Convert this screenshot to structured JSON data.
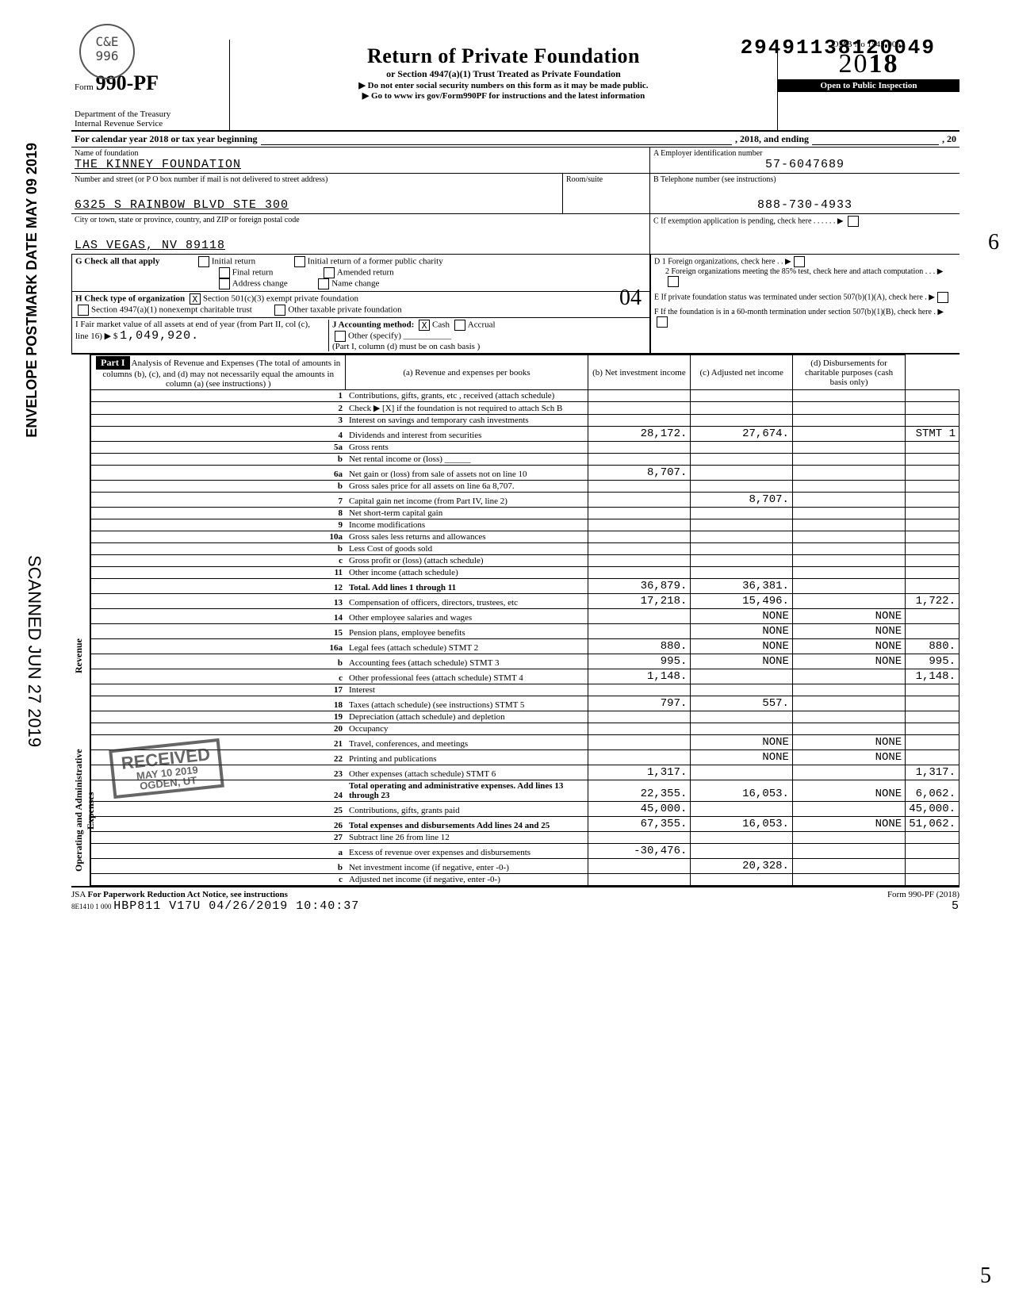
{
  "stamp_top": "C&E\n996",
  "dln": "29491138120049",
  "form": {
    "prefix": "Form",
    "number": "990-PF",
    "dept": "Department of the Treasury\nInternal Revenue Service",
    "title": "Return of Private Foundation",
    "subtitle": "or Section 4947(a)(1) Trust Treated as Private Foundation",
    "warn": "▶ Do not enter social security numbers on this form as it may be made public.",
    "goto": "▶ Go to www irs gov/Form990PF for instructions and the latest information",
    "omb": "OMB No 1545-0052",
    "year": "2018",
    "inspect": "Open to Public Inspection"
  },
  "cal": {
    "line": "For calendar year 2018 or tax year beginning",
    "mid": ", 2018, and ending",
    "end": ", 20"
  },
  "id": {
    "name_label": "Name of foundation",
    "name": "THE KINNEY FOUNDATION",
    "addr_label": "Number and street (or P O box number if mail is not delivered to street address)",
    "addr": "6325 S RAINBOW BLVD STE 300",
    "room_label": "Room/suite",
    "city_label": "City or town, state or province, country, and ZIP or foreign postal code",
    "city": "LAS VEGAS, NV 89118",
    "ein_label": "A  Employer identification number",
    "ein": "57-6047689",
    "phone_label": "B  Telephone number (see instructions)",
    "phone": "888-730-4933",
    "c_label": "C  If exemption application is pending, check here",
    "d1": "D 1 Foreign organizations, check here",
    "d2": "2 Foreign organizations meeting the 85% test, check here and attach computation",
    "e": "E  If private foundation status was terminated under section 507(b)(1)(A), check here",
    "f": "F  If the foundation is in a 60-month termination under section 507(b)(1)(B), check here"
  },
  "g": {
    "label": "G  Check all that apply",
    "opts": [
      "Initial return",
      "Final return",
      "Address change",
      "Initial return of a former public charity",
      "Amended return",
      "Name change"
    ]
  },
  "h": {
    "label": "H  Check type of organization",
    "o1": "Section 501(c)(3) exempt private foundation",
    "o2": "Section 4947(a)(1) nonexempt charitable trust",
    "o3": "Other taxable private foundation",
    "hand": "04"
  },
  "i": {
    "label": "I  Fair market value of all assets at end of year (from Part II, col (c), line 16) ▶ $",
    "val": "1,049,920."
  },
  "j": {
    "label": "J Accounting method:",
    "cash": "Cash",
    "accrual": "Accrual",
    "other": "Other (specify)",
    "note": "(Part I, column (d) must be on cash basis )"
  },
  "part1": {
    "title": "Part I",
    "heading": "Analysis of Revenue and Expenses (The total of amounts in columns (b), (c), and (d) may not necessarily equal the amounts in column (a) (see instructions) )",
    "cols": [
      "(a) Revenue and expenses per books",
      "(b) Net investment income",
      "(c) Adjusted net income",
      "(d) Disbursements for charitable purposes (cash basis only)"
    ]
  },
  "rev_label": "Revenue",
  "exp_label": "Operating and Administrative Expenses",
  "lines": [
    {
      "n": "1",
      "d": "Contributions, gifts, grants, etc , received (attach schedule)",
      "a": "",
      "b": "",
      "c": "",
      "e": ""
    },
    {
      "n": "2",
      "d": "Check ▶ [X] if the foundation is not required to attach Sch B",
      "a": "",
      "b": "",
      "c": "",
      "e": ""
    },
    {
      "n": "3",
      "d": "Interest on savings and temporary cash investments",
      "a": "",
      "b": "",
      "c": "",
      "e": ""
    },
    {
      "n": "4",
      "d": "Dividends and interest from securities",
      "a": "28,172.",
      "b": "27,674.",
      "c": "",
      "e": "STMT 1"
    },
    {
      "n": "5a",
      "d": "Gross rents",
      "a": "",
      "b": "",
      "c": "",
      "e": ""
    },
    {
      "n": "b",
      "d": "Net rental income or (loss) ______",
      "a": "",
      "b": "",
      "c": "",
      "e": ""
    },
    {
      "n": "6a",
      "d": "Net gain or (loss) from sale of assets not on line 10",
      "a": "8,707.",
      "b": "",
      "c": "",
      "e": ""
    },
    {
      "n": "b",
      "d": "Gross sales price for all assets on line 6a     8,707.",
      "a": "",
      "b": "",
      "c": "",
      "e": ""
    },
    {
      "n": "7",
      "d": "Capital gain net income (from Part IV, line 2)",
      "a": "",
      "b": "8,707.",
      "c": "",
      "e": ""
    },
    {
      "n": "8",
      "d": "Net short-term capital gain",
      "a": "",
      "b": "",
      "c": "",
      "e": ""
    },
    {
      "n": "9",
      "d": "Income modifications",
      "a": "",
      "b": "",
      "c": "",
      "e": ""
    },
    {
      "n": "10a",
      "d": "Gross sales less returns and allowances",
      "a": "",
      "b": "",
      "c": "",
      "e": ""
    },
    {
      "n": "b",
      "d": "Less Cost of goods sold",
      "a": "",
      "b": "",
      "c": "",
      "e": ""
    },
    {
      "n": "c",
      "d": "Gross profit or (loss) (attach schedule)",
      "a": "",
      "b": "",
      "c": "",
      "e": ""
    },
    {
      "n": "11",
      "d": "Other income (attach schedule)",
      "a": "",
      "b": "",
      "c": "",
      "e": ""
    },
    {
      "n": "12",
      "d": "Total. Add lines 1 through 11",
      "a": "36,879.",
      "b": "36,381.",
      "c": "",
      "e": ""
    },
    {
      "n": "13",
      "d": "Compensation of officers, directors, trustees, etc",
      "a": "17,218.",
      "b": "15,496.",
      "c": "",
      "e": "1,722."
    },
    {
      "n": "14",
      "d": "Other employee salaries and wages",
      "a": "",
      "b": "NONE",
      "c": "NONE",
      "e": ""
    },
    {
      "n": "15",
      "d": "Pension plans, employee benefits",
      "a": "",
      "b": "NONE",
      "c": "NONE",
      "e": ""
    },
    {
      "n": "16a",
      "d": "Legal fees (attach schedule)   STMT 2",
      "a": "880.",
      "b": "NONE",
      "c": "NONE",
      "e": "880."
    },
    {
      "n": "b",
      "d": "Accounting fees (attach schedule) STMT 3",
      "a": "995.",
      "b": "NONE",
      "c": "NONE",
      "e": "995."
    },
    {
      "n": "c",
      "d": "Other professional fees (attach schedule) STMT 4",
      "a": "1,148.",
      "b": "",
      "c": "",
      "e": "1,148."
    },
    {
      "n": "17",
      "d": "Interest",
      "a": "",
      "b": "",
      "c": "",
      "e": ""
    },
    {
      "n": "18",
      "d": "Taxes (attach schedule) (see instructions) STMT 5",
      "a": "797.",
      "b": "557.",
      "c": "",
      "e": ""
    },
    {
      "n": "19",
      "d": "Depreciation (attach schedule) and depletion",
      "a": "",
      "b": "",
      "c": "",
      "e": ""
    },
    {
      "n": "20",
      "d": "Occupancy",
      "a": "",
      "b": "",
      "c": "",
      "e": ""
    },
    {
      "n": "21",
      "d": "Travel, conferences, and meetings",
      "a": "",
      "b": "NONE",
      "c": "NONE",
      "e": ""
    },
    {
      "n": "22",
      "d": "Printing and publications",
      "a": "",
      "b": "NONE",
      "c": "NONE",
      "e": ""
    },
    {
      "n": "23",
      "d": "Other expenses (attach schedule) STMT 6",
      "a": "1,317.",
      "b": "",
      "c": "",
      "e": "1,317."
    },
    {
      "n": "24",
      "d": "Total operating and administrative expenses. Add lines 13 through 23",
      "a": "22,355.",
      "b": "16,053.",
      "c": "NONE",
      "e": "6,062."
    },
    {
      "n": "25",
      "d": "Contributions, gifts, grants paid",
      "a": "45,000.",
      "b": "",
      "c": "",
      "e": "45,000."
    },
    {
      "n": "26",
      "d": "Total expenses and disbursements Add lines 24 and 25",
      "a": "67,355.",
      "b": "16,053.",
      "c": "NONE",
      "e": "51,062."
    },
    {
      "n": "27",
      "d": "Subtract line 26 from line 12",
      "a": "",
      "b": "",
      "c": "",
      "e": ""
    },
    {
      "n": "a",
      "d": "Excess of revenue over expenses and disbursements",
      "a": "-30,476.",
      "b": "",
      "c": "",
      "e": ""
    },
    {
      "n": "b",
      "d": "Net investment income (if negative, enter -0-)",
      "a": "",
      "b": "20,328.",
      "c": "",
      "e": ""
    },
    {
      "n": "c",
      "d": "Adjusted net income (if negative, enter -0-)",
      "a": "",
      "b": "",
      "c": "",
      "e": ""
    }
  ],
  "footer": {
    "jsa": "JSA",
    "pra": "For Paperwork Reduction Act Notice, see instructions",
    "code": "8E1410 1 000",
    "stamp": "HBP811 V17U 04/26/2019 10:40:37",
    "formref": "Form 990-PF (2018)",
    "page": "5"
  },
  "side": {
    "postmark": "ENVELOPE\nPOSTMARK DATE  MAY 09 2019",
    "scanned": "SCANNED  JUN 27 2019"
  },
  "received": {
    "t": "RECEIVED",
    "d": "MAY 10 2019",
    "u": "OGDEN, UT"
  },
  "hand6": "6",
  "hand5": "5"
}
